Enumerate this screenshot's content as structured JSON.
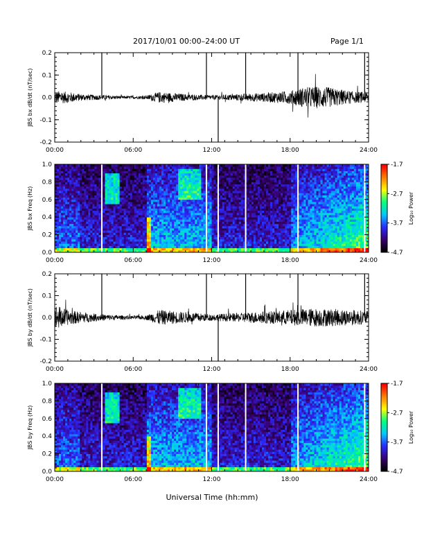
{
  "header": {
    "title": "2017/10/01   00:00–24:00 UT",
    "page": "Page 1/1"
  },
  "x_axis": {
    "title": "Universal Time (hh:mm)",
    "tick_labels": [
      "00:00",
      "06:00",
      "12:00",
      "18:00",
      "24:00"
    ],
    "range_hours": [
      0,
      24
    ]
  },
  "colorbar": {
    "label": "Log₁₀ Power",
    "tick_labels": [
      "-1.7",
      "-2.7",
      "-3.7",
      "-4.7"
    ],
    "range": [
      -4.7,
      -1.7
    ],
    "colors": [
      "#000000",
      "#3a0070",
      "#2a2aff",
      "#00c8ff",
      "#00ff80",
      "#ffff00",
      "#ff8000",
      "#ff0000"
    ]
  },
  "chart_data": [
    {
      "type": "line",
      "ylabel": "JBS bx dB/dt (nT/sec)",
      "ylim": [
        -0.2,
        0.2
      ],
      "y_ticks": [
        "-0.2",
        "-0.1",
        "0.0",
        "0.1",
        "0.2"
      ],
      "line_color": "#000000",
      "spike_hours": [
        3.6,
        11.6,
        12.5,
        14.6,
        18.6,
        23.7
      ],
      "amplitude_envelope": {
        "hours": [
          0,
          1,
          2,
          3,
          4,
          5,
          6,
          7,
          8,
          9,
          10,
          11,
          12,
          13,
          14,
          15,
          16,
          17,
          18,
          19,
          20,
          21,
          22,
          23,
          24
        ],
        "values": [
          0.03,
          0.025,
          0.015,
          0.012,
          0.01,
          0.007,
          0.006,
          0.008,
          0.025,
          0.02,
          0.015,
          0.012,
          0.01,
          0.012,
          0.015,
          0.018,
          0.02,
          0.025,
          0.03,
          0.045,
          0.05,
          0.045,
          0.035,
          0.025,
          0.025
        ]
      }
    },
    {
      "type": "heatmap",
      "ylabel": "JBS bx Freq (Hz)",
      "ylim": [
        0.0,
        1.0
      ],
      "y_ticks": [
        "0.0",
        "0.2",
        "0.4",
        "0.6",
        "0.8",
        "1.0"
      ],
      "zlim": [
        -4.7,
        -1.7
      ],
      "gap_hours": [
        3.6,
        11.6,
        12.5,
        14.6,
        18.6,
        23.7
      ]
    },
    {
      "type": "line",
      "ylabel": "JBS by dB/dt (nT/sec)",
      "ylim": [
        -0.2,
        0.2
      ],
      "y_ticks": [
        "-0.2",
        "-0.1",
        "0.0",
        "0.1",
        "0.2"
      ],
      "line_color": "#000000",
      "spike_hours": [
        3.6,
        11.6,
        12.5,
        14.6,
        18.6,
        23.7
      ],
      "amplitude_envelope": {
        "hours": [
          0,
          1,
          2,
          3,
          4,
          5,
          6,
          7,
          8,
          9,
          10,
          11,
          12,
          13,
          14,
          15,
          16,
          17,
          18,
          19,
          20,
          21,
          22,
          23,
          24
        ],
        "values": [
          0.06,
          0.035,
          0.025,
          0.018,
          0.014,
          0.01,
          0.008,
          0.01,
          0.035,
          0.03,
          0.025,
          0.02,
          0.015,
          0.018,
          0.02,
          0.025,
          0.028,
          0.03,
          0.035,
          0.04,
          0.042,
          0.04,
          0.038,
          0.035,
          0.03
        ]
      }
    },
    {
      "type": "heatmap",
      "ylabel": "JBS by Freq (Hz)",
      "ylim": [
        0.0,
        1.0
      ],
      "y_ticks": [
        "0.0",
        "0.2",
        "0.4",
        "0.6",
        "0.8",
        "1.0"
      ],
      "zlim": [
        -4.7,
        -1.7
      ],
      "gap_hours": [
        3.6,
        11.6,
        12.5,
        14.6,
        18.6,
        23.7
      ]
    }
  ]
}
